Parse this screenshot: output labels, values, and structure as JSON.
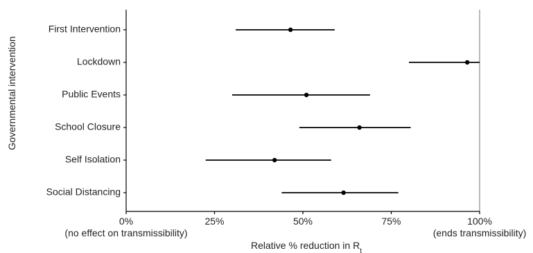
{
  "chart_data": {
    "type": "dot-errorbar",
    "orientation": "horizontal",
    "ylabel": "Governmental intervention",
    "xlabel": "Relative % reduction in R",
    "xlabel_subscript": "t",
    "xlim": [
      0,
      100
    ],
    "categories": [
      "First Intervention",
      "Lockdown",
      "Public Events",
      "School Closure",
      "Self Isolation",
      "Social Distancing"
    ],
    "series": [
      {
        "values": [
          46.5,
          96.5,
          51,
          66,
          42,
          61.5
        ],
        "lower": [
          31,
          80,
          30,
          49,
          22.5,
          44
        ],
        "upper": [
          59,
          100,
          69,
          80.5,
          58,
          77
        ]
      }
    ],
    "xticks": [
      {
        "value": 0,
        "label": "0%",
        "sublabel": "(no effect on transmissibility)"
      },
      {
        "value": 25,
        "label": "25%",
        "sublabel": ""
      },
      {
        "value": 50,
        "label": "50%",
        "sublabel": ""
      },
      {
        "value": 75,
        "label": "75%",
        "sublabel": ""
      },
      {
        "value": 100,
        "label": "100%",
        "sublabel": "(ends transmissibility)"
      }
    ],
    "reference_line": 100,
    "grid": false,
    "colors": {
      "marks": "#000000",
      "axis": "#000000",
      "reference": "#888888"
    }
  }
}
